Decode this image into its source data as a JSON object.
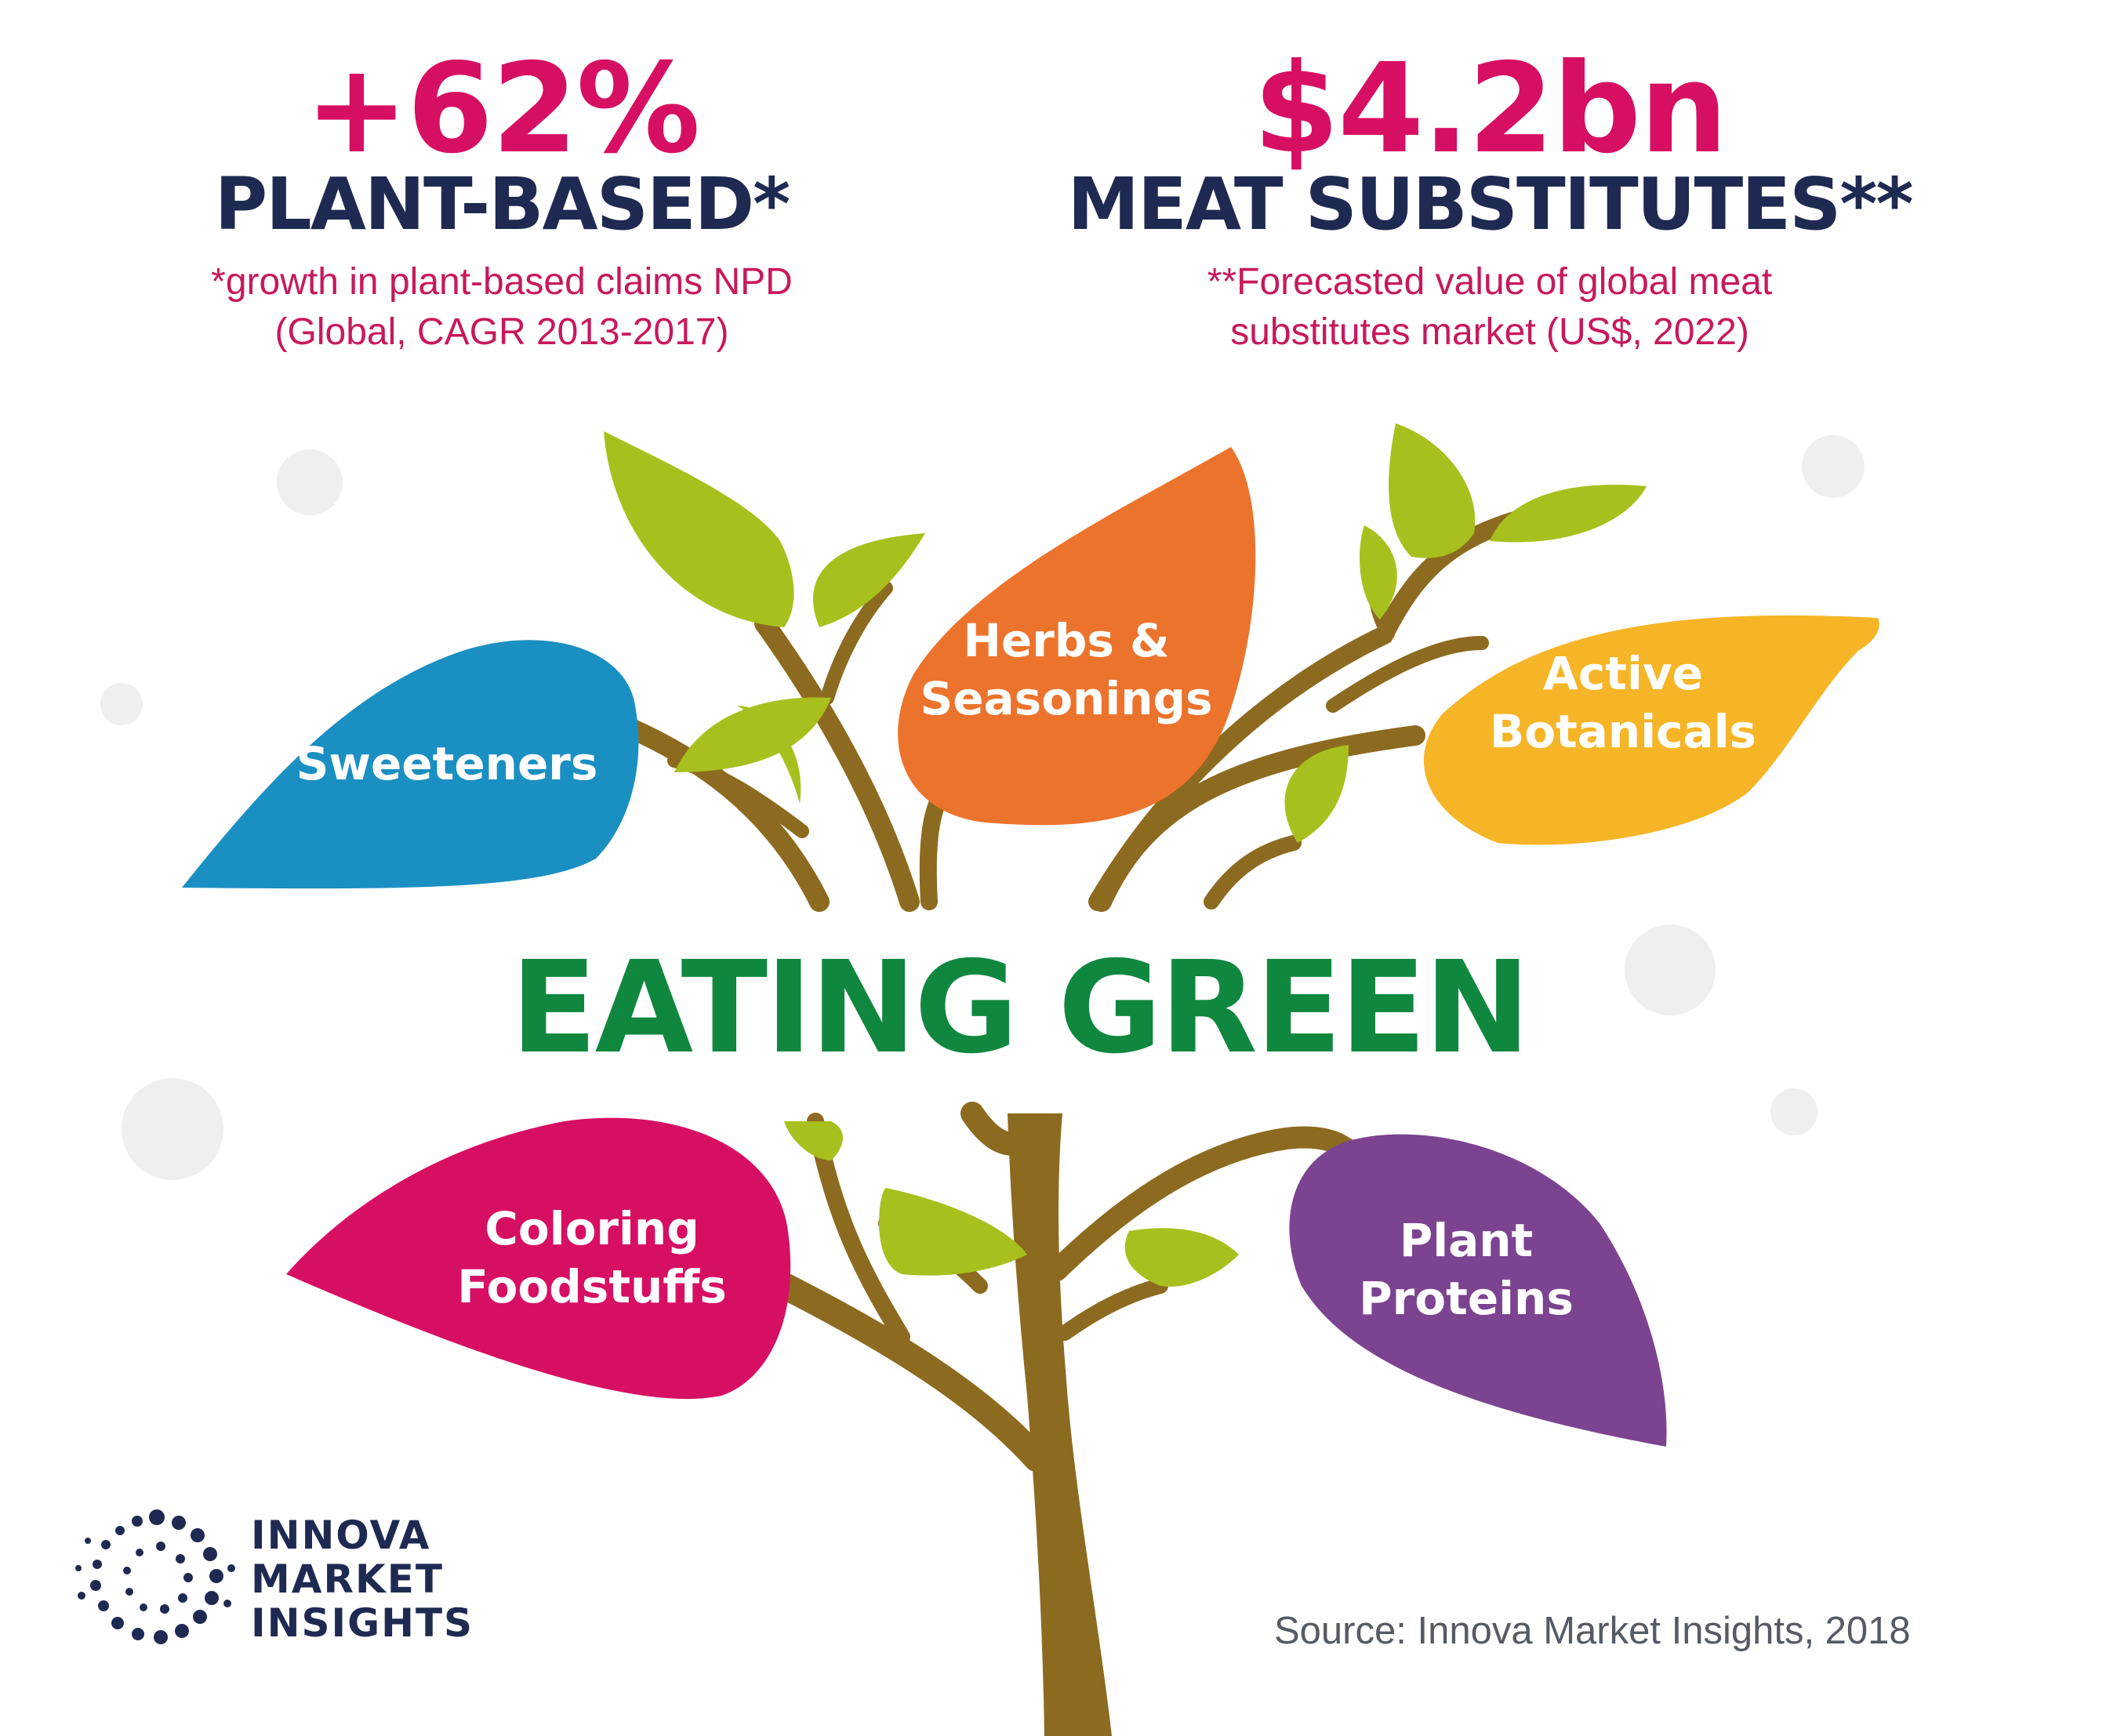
{
  "stats": {
    "left": {
      "value": "+62%",
      "label": "PLANT-BASED*",
      "note_line1": "*growth in plant-based claims NPD",
      "note_line2": "(Global, CAGR 2013-2017)"
    },
    "right": {
      "value": "$4.2bn",
      "label": "MEAT SUBSTITUTES**",
      "note_line1": "**Forecasted value of global meat",
      "note_line2": "substitutes market (US$, 2022)"
    }
  },
  "headline": "EATING GREEN",
  "leaves": {
    "sweeteners": {
      "line1": "Sweeteners",
      "color": "#1a8fc2"
    },
    "herbs": {
      "line1": "Herbs &",
      "line2": "Seasonings",
      "color": "#ec732c"
    },
    "botanicals": {
      "line1": "Active",
      "line2": "Botanicals",
      "color": "#f6b527"
    },
    "coloring": {
      "line1": "Coloring",
      "line2": "Foodstuffs",
      "color": "#d70f63"
    },
    "proteins": {
      "line1": "Plant",
      "line2": "Proteins",
      "color": "#7c4390"
    }
  },
  "colors": {
    "branch": "#8c6a1f",
    "green_leaf": "#a8c01e",
    "headline": "#10873f",
    "navy": "#1e2a52",
    "pink": "#d70f63",
    "bubble": "#eeeff1"
  },
  "brand": {
    "line1": "INNOVA",
    "line2": "MARKET",
    "line3": "INSIGHTS",
    "icon": "dotted-circle-logo"
  },
  "source": "Source: Innova Market Insights, 2018"
}
